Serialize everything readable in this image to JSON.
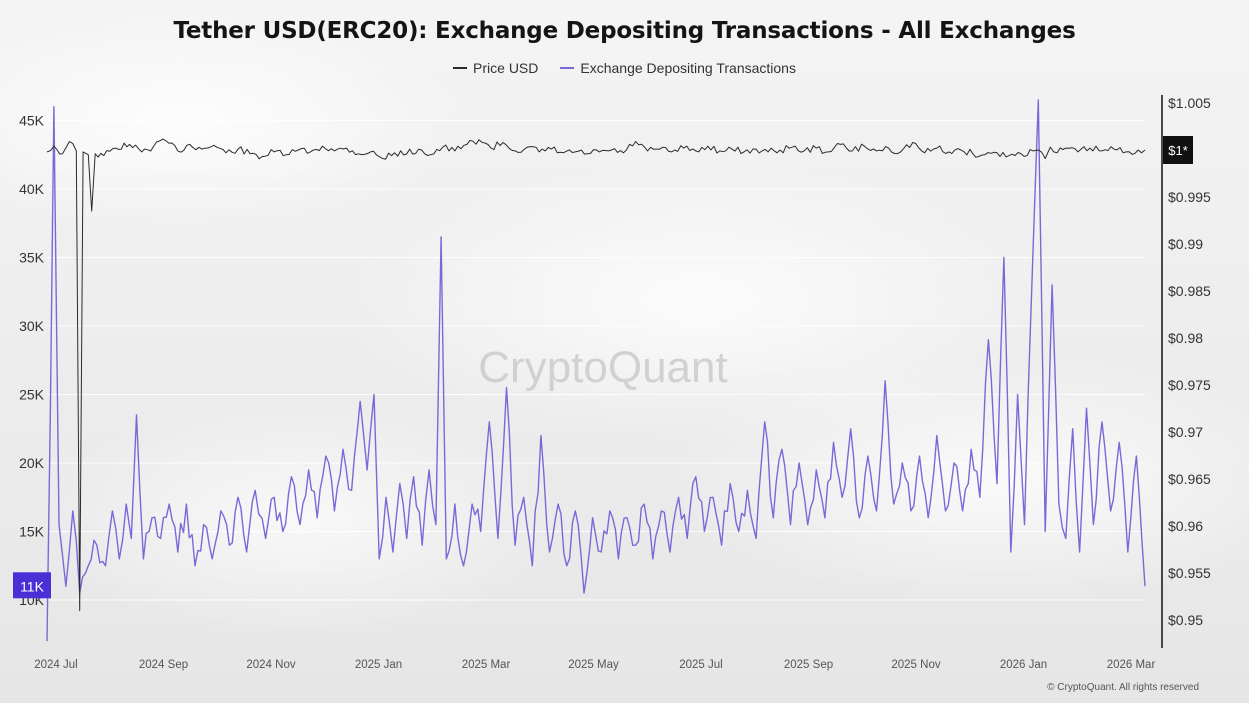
{
  "chart_data": {
    "type": "line",
    "title": "Tether USD(ERC20): Exchange Depositing Transactions - All Exchanges",
    "legend": {
      "placement": "top",
      "items": [
        "Price USD",
        "Exchange Depositing Transactions"
      ]
    },
    "grid": true,
    "watermark": "CryptoQuant",
    "copyright": "© CryptoQuant. All rights reserved",
    "x_axis": {
      "ticks": [
        "2024 Jul",
        "2024 Sep",
        "2024 Nov",
        "2025 Jan",
        "2025 Mar",
        "2025 May",
        "2025 Jul",
        "2025 Sep",
        "2025 Nov",
        "2026 Jan",
        "2026 Mar"
      ],
      "range": [
        "2024-07-01",
        "2026-03-31"
      ]
    },
    "y_left": {
      "ticks": [
        "10K",
        "15K",
        "20K",
        "25K",
        "30K",
        "35K",
        "40K",
        "45K"
      ],
      "tick_values": [
        10000,
        15000,
        20000,
        25000,
        30000,
        35000,
        40000,
        45000
      ],
      "current_label": "11K",
      "current_value": 11000
    },
    "y_right": {
      "ticks": [
        "$0.95",
        "$0.955",
        "$0.96",
        "$0.965",
        "$0.97",
        "$0.975",
        "$0.98",
        "$0.985",
        "$0.99",
        "$0.995",
        "$1.005"
      ],
      "tick_values": [
        0.95,
        0.955,
        0.96,
        0.965,
        0.97,
        0.975,
        0.98,
        0.985,
        0.99,
        0.995,
        1.005
      ],
      "current_label": "$1*",
      "current_value": 1.0
    },
    "series": [
      {
        "name": "Exchange Depositing Transactions",
        "color": "#7b68d8",
        "axis": "left",
        "points": [
          [
            "2024-07-01",
            7000
          ],
          [
            "2024-07-03",
            24000
          ],
          [
            "2024-07-05",
            46000
          ],
          [
            "2024-07-08",
            15500
          ],
          [
            "2024-07-12",
            11000
          ],
          [
            "2024-07-16",
            16500
          ],
          [
            "2024-07-20",
            10500
          ],
          [
            "2024-07-25",
            12500
          ],
          [
            "2024-07-30",
            14000
          ],
          [
            "2024-08-04",
            12500
          ],
          [
            "2024-08-08",
            16500
          ],
          [
            "2024-08-12",
            13000
          ],
          [
            "2024-08-16",
            17000
          ],
          [
            "2024-08-19",
            14500
          ],
          [
            "2024-08-22",
            23500
          ],
          [
            "2024-08-26",
            13000
          ],
          [
            "2024-08-31",
            16000
          ],
          [
            "2024-09-05",
            14500
          ],
          [
            "2024-09-10",
            17000
          ],
          [
            "2024-09-15",
            13500
          ],
          [
            "2024-09-20",
            17000
          ],
          [
            "2024-09-25",
            12500
          ],
          [
            "2024-09-30",
            15500
          ],
          [
            "2024-10-05",
            13000
          ],
          [
            "2024-10-10",
            16500
          ],
          [
            "2024-10-15",
            14000
          ],
          [
            "2024-10-20",
            17500
          ],
          [
            "2024-10-25",
            13500
          ],
          [
            "2024-10-30",
            18000
          ],
          [
            "2024-11-05",
            14500
          ],
          [
            "2024-11-10",
            17500
          ],
          [
            "2024-11-15",
            15000
          ],
          [
            "2024-11-20",
            19000
          ],
          [
            "2024-11-25",
            15500
          ],
          [
            "2024-11-30",
            19500
          ],
          [
            "2024-12-05",
            16000
          ],
          [
            "2024-12-10",
            20500
          ],
          [
            "2024-12-15",
            16500
          ],
          [
            "2024-12-20",
            21000
          ],
          [
            "2024-12-25",
            18000
          ],
          [
            "2024-12-30",
            24500
          ],
          [
            "2025-01-03",
            19500
          ],
          [
            "2025-01-07",
            25000
          ],
          [
            "2025-01-10",
            13000
          ],
          [
            "2025-01-14",
            17500
          ],
          [
            "2025-01-18",
            13500
          ],
          [
            "2025-01-22",
            18500
          ],
          [
            "2025-01-26",
            14500
          ],
          [
            "2025-01-30",
            19000
          ],
          [
            "2025-02-04",
            14000
          ],
          [
            "2025-02-08",
            19500
          ],
          [
            "2025-02-12",
            15500
          ],
          [
            "2025-02-15",
            36500
          ],
          [
            "2025-02-18",
            13000
          ],
          [
            "2025-02-23",
            17000
          ],
          [
            "2025-02-28",
            12500
          ],
          [
            "2025-03-05",
            17000
          ],
          [
            "2025-03-10",
            15000
          ],
          [
            "2025-03-15",
            23000
          ],
          [
            "2025-03-20",
            14500
          ],
          [
            "2025-03-25",
            25500
          ],
          [
            "2025-03-30",
            14000
          ],
          [
            "2025-04-04",
            17500
          ],
          [
            "2025-04-09",
            12500
          ],
          [
            "2025-04-14",
            22000
          ],
          [
            "2025-04-19",
            13500
          ],
          [
            "2025-04-24",
            17000
          ],
          [
            "2025-04-29",
            12500
          ],
          [
            "2025-05-04",
            16500
          ],
          [
            "2025-05-09",
            10500
          ],
          [
            "2025-05-14",
            16000
          ],
          [
            "2025-05-19",
            13500
          ],
          [
            "2025-05-24",
            16500
          ],
          [
            "2025-05-29",
            13000
          ],
          [
            "2025-06-03",
            16000
          ],
          [
            "2025-06-08",
            14000
          ],
          [
            "2025-06-13",
            17000
          ],
          [
            "2025-06-18",
            13000
          ],
          [
            "2025-06-23",
            16500
          ],
          [
            "2025-06-28",
            13500
          ],
          [
            "2025-07-03",
            17500
          ],
          [
            "2025-07-08",
            14500
          ],
          [
            "2025-07-13",
            19000
          ],
          [
            "2025-07-18",
            15000
          ],
          [
            "2025-07-23",
            17500
          ],
          [
            "2025-07-28",
            14000
          ],
          [
            "2025-08-02",
            18500
          ],
          [
            "2025-08-07",
            15000
          ],
          [
            "2025-08-12",
            18000
          ],
          [
            "2025-08-17",
            14500
          ],
          [
            "2025-08-22",
            23000
          ],
          [
            "2025-08-27",
            16000
          ],
          [
            "2025-09-01",
            21000
          ],
          [
            "2025-09-06",
            15500
          ],
          [
            "2025-09-11",
            20000
          ],
          [
            "2025-09-16",
            15500
          ],
          [
            "2025-09-21",
            19500
          ],
          [
            "2025-09-26",
            16000
          ],
          [
            "2025-10-01",
            21500
          ],
          [
            "2025-10-06",
            17500
          ],
          [
            "2025-10-11",
            22500
          ],
          [
            "2025-10-16",
            16000
          ],
          [
            "2025-10-21",
            20500
          ],
          [
            "2025-10-26",
            16500
          ],
          [
            "2025-10-31",
            26000
          ],
          [
            "2025-11-05",
            17000
          ],
          [
            "2025-11-10",
            20000
          ],
          [
            "2025-11-15",
            16500
          ],
          [
            "2025-11-20",
            20500
          ],
          [
            "2025-11-25",
            16000
          ],
          [
            "2025-11-30",
            22000
          ],
          [
            "2025-12-05",
            16500
          ],
          [
            "2025-12-10",
            20000
          ],
          [
            "2025-12-15",
            16500
          ],
          [
            "2025-12-20",
            21000
          ],
          [
            "2025-12-25",
            17500
          ],
          [
            "2025-12-30",
            29000
          ],
          [
            "2026-01-04",
            18500
          ],
          [
            "2026-01-08",
            35000
          ],
          [
            "2026-01-12",
            13500
          ],
          [
            "2026-01-16",
            25000
          ],
          [
            "2026-01-20",
            15500
          ],
          [
            "2026-01-24",
            32000
          ],
          [
            "2026-01-28",
            46500
          ],
          [
            "2026-02-01",
            15000
          ],
          [
            "2026-02-05",
            33000
          ],
          [
            "2026-02-09",
            17000
          ],
          [
            "2026-02-13",
            14500
          ],
          [
            "2026-02-17",
            22500
          ],
          [
            "2026-02-21",
            13500
          ],
          [
            "2026-02-25",
            24000
          ],
          [
            "2026-03-01",
            15500
          ],
          [
            "2026-03-06",
            23000
          ],
          [
            "2026-03-11",
            16500
          ],
          [
            "2026-03-16",
            21500
          ],
          [
            "2026-03-21",
            13500
          ],
          [
            "2026-03-26",
            20500
          ],
          [
            "2026-03-31",
            11000
          ]
        ]
      },
      {
        "name": "Price USD",
        "color": "#2b2b2b",
        "axis": "right",
        "points": [
          [
            "2024-07-01",
            0.9998
          ],
          [
            "2024-07-05",
            1.0004
          ],
          [
            "2024-07-10",
            0.9996
          ],
          [
            "2024-07-14",
            1.0009
          ],
          [
            "2024-07-18",
            0.9999
          ],
          [
            "2024-07-20",
            0.951
          ],
          [
            "2024-07-22",
            0.9998
          ],
          [
            "2024-07-25",
            0.9995
          ],
          [
            "2024-07-27",
            0.9935
          ],
          [
            "2024-07-29",
            0.9996
          ],
          [
            "2024-08-03",
            0.9994
          ],
          [
            "2024-08-10",
            1.0002
          ],
          [
            "2024-08-18",
            1.0006
          ],
          [
            "2024-08-25",
            0.9998
          ],
          [
            "2024-09-01",
            1.0004
          ],
          [
            "2024-09-08",
            1.001
          ],
          [
            "2024-09-15",
            0.9999
          ],
          [
            "2024-09-22",
            1.0006
          ],
          [
            "2024-09-29",
            1.0001
          ],
          [
            "2024-10-06",
            1.0005
          ],
          [
            "2024-10-13",
            0.9997
          ],
          [
            "2024-10-20",
            1.0001
          ],
          [
            "2024-10-27",
            0.9996
          ],
          [
            "2024-11-03",
            0.9993
          ],
          [
            "2024-11-10",
            0.9998
          ],
          [
            "2024-11-17",
            0.9995
          ],
          [
            "2024-11-24",
            1.0
          ],
          [
            "2024-12-01",
            0.9998
          ],
          [
            "2024-12-08",
            1.0004
          ],
          [
            "2024-12-15",
            0.9999
          ],
          [
            "2024-12-22",
            1.0002
          ],
          [
            "2024-12-29",
            0.9996
          ],
          [
            "2025-01-05",
            0.9998
          ],
          [
            "2025-01-12",
            0.9991
          ],
          [
            "2025-01-19",
            0.9997
          ],
          [
            "2025-01-26",
            0.9996
          ],
          [
            "2025-02-02",
            1.0001
          ],
          [
            "2025-02-09",
            0.9995
          ],
          [
            "2025-02-16",
            1.0003
          ],
          [
            "2025-02-23",
            0.9999
          ],
          [
            "2025-03-02",
            1.0006
          ],
          [
            "2025-03-09",
            1.0011
          ],
          [
            "2025-03-16",
            1.0002
          ],
          [
            "2025-03-23",
            1.0008
          ],
          [
            "2025-03-30",
            0.9999
          ],
          [
            "2025-04-06",
            1.0003
          ],
          [
            "2025-04-13",
            0.9998
          ],
          [
            "2025-04-20",
            1.0001
          ],
          [
            "2025-04-27",
            0.9997
          ],
          [
            "2025-05-04",
            0.9998
          ],
          [
            "2025-05-11",
            0.9996
          ],
          [
            "2025-05-18",
            0.9998
          ],
          [
            "2025-05-25",
            1.0
          ],
          [
            "2025-06-01",
            0.9997
          ],
          [
            "2025-06-08",
            1.0009
          ],
          [
            "2025-06-15",
            0.9999
          ],
          [
            "2025-06-22",
            1.0001
          ],
          [
            "2025-06-29",
            0.9998
          ],
          [
            "2025-07-06",
            1.0002
          ],
          [
            "2025-07-13",
            0.9999
          ],
          [
            "2025-07-20",
            1.0004
          ],
          [
            "2025-07-27",
            0.9999
          ],
          [
            "2025-08-03",
            1.0001
          ],
          [
            "2025-08-10",
            0.9998
          ],
          [
            "2025-08-17",
            1.0001
          ],
          [
            "2025-08-24",
            0.9998
          ],
          [
            "2025-08-31",
            1.0
          ],
          [
            "2025-09-07",
            1.0003
          ],
          [
            "2025-09-14",
            0.9999
          ],
          [
            "2025-09-21",
            1.0002
          ],
          [
            "2025-09-28",
            0.9998
          ],
          [
            "2025-10-05",
            1.0006
          ],
          [
            "2025-10-12",
            0.9999
          ],
          [
            "2025-10-19",
            1.0004
          ],
          [
            "2025-10-26",
            0.9999
          ],
          [
            "2025-11-02",
            1.0002
          ],
          [
            "2025-11-09",
            0.9998
          ],
          [
            "2025-11-16",
            1.0008
          ],
          [
            "2025-11-23",
            0.9997
          ],
          [
            "2025-11-30",
            1.0002
          ],
          [
            "2025-12-07",
            0.9998
          ],
          [
            "2025-12-14",
            1.0
          ],
          [
            "2025-12-21",
            0.9996
          ],
          [
            "2025-12-28",
            0.9995
          ],
          [
            "2026-01-04",
            0.9997
          ],
          [
            "2026-01-11",
            0.9994
          ],
          [
            "2026-01-18",
            0.9996
          ],
          [
            "2026-01-25",
            0.9999
          ],
          [
            "2026-01-28",
            1.0
          ],
          [
            "2026-02-01",
            0.9991
          ],
          [
            "2026-02-04",
            1.0003
          ],
          [
            "2026-02-08",
            0.9997
          ],
          [
            "2026-02-13",
            1.0002
          ],
          [
            "2026-02-20",
            0.9998
          ],
          [
            "2026-02-27",
            1.0002
          ],
          [
            "2026-03-06",
            0.9999
          ],
          [
            "2026-03-13",
            1.0001
          ],
          [
            "2026-03-20",
            0.9998
          ],
          [
            "2026-03-27",
            1.0
          ],
          [
            "2026-03-31",
            1.0
          ]
        ]
      }
    ]
  }
}
